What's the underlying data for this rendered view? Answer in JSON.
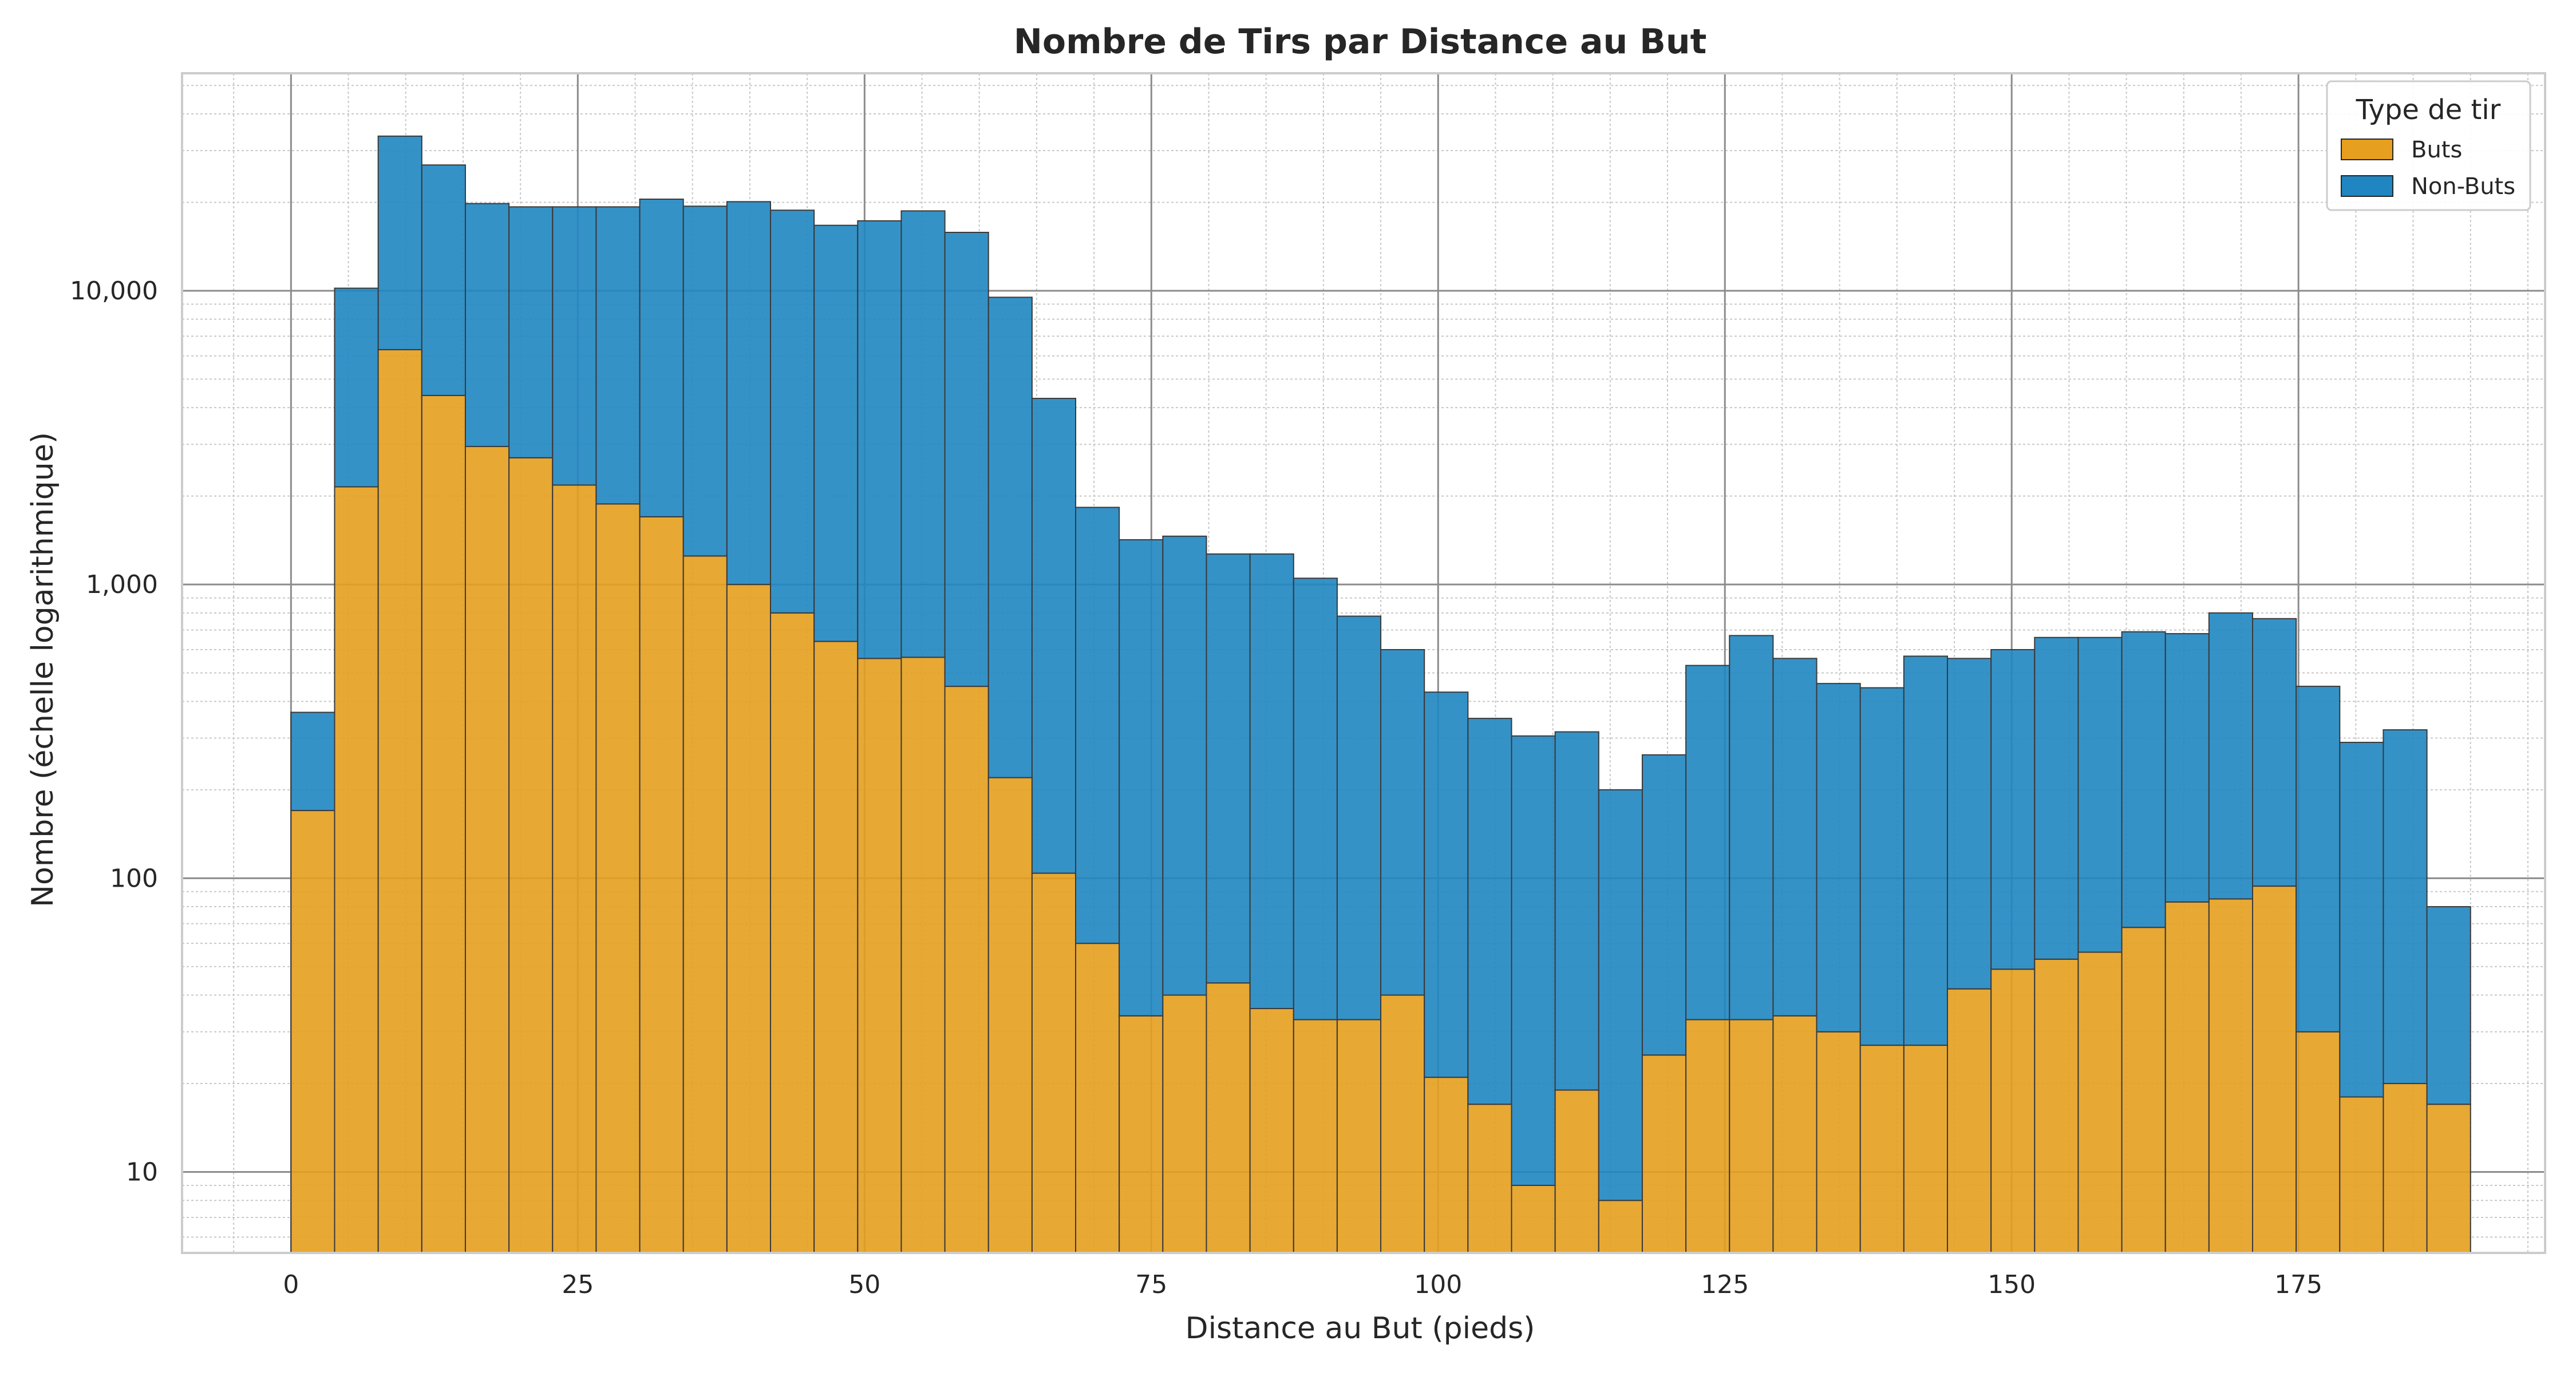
{
  "chart_data": {
    "type": "bar",
    "stacked": true,
    "title": "Nombre de Tirs par Distance au But",
    "xlabel": "Distance au But (pieds)",
    "ylabel": "Nombre (échelle logarithmique)",
    "yscale": "log",
    "xlim": [
      -9.5,
      196.5
    ],
    "ylim": [
      5.3,
      55000
    ],
    "x_ticks": [
      0,
      25,
      50,
      75,
      100,
      125,
      150,
      175
    ],
    "y_ticks": [
      10,
      100,
      1000,
      10000
    ],
    "y_tick_labels": [
      "10",
      "100",
      "1,000",
      "10,000"
    ],
    "bin_width": 3.8,
    "bin_start": 0,
    "grid": true,
    "legend": {
      "title": "Type de tir",
      "position": "top-right"
    },
    "series": [
      {
        "name": "Buts",
        "color": "#E69F1E",
        "values": [
          170,
          2150,
          6300,
          4400,
          2950,
          2700,
          2180,
          1880,
          1700,
          1250,
          1000,
          800,
          640,
          560,
          565,
          450,
          220,
          104,
          60,
          34,
          40,
          44,
          36,
          33,
          33,
          40,
          21,
          17,
          9,
          19,
          8,
          25,
          33,
          33,
          34,
          30,
          27,
          27,
          42,
          49,
          53,
          56,
          68,
          83,
          85,
          94,
          30,
          18,
          20,
          17
        ]
      },
      {
        "name": "Non-Buts",
        "color": "#1F86C1",
        "values": [
          197,
          8050,
          27300,
          22400,
          16850,
          16600,
          17120,
          17420,
          18800,
          18150,
          19100,
          18000,
          16060,
          16740,
          18135,
          15350,
          9280,
          4196,
          1770,
          1386,
          1420,
          1226,
          1234,
          1017,
          747,
          560,
          409,
          333,
          296,
          296,
          192,
          238,
          497,
          637,
          526,
          430,
          418,
          543,
          518,
          551,
          607,
          604,
          622,
          597,
          715,
          671,
          420,
          272,
          300,
          63
        ]
      }
    ]
  }
}
